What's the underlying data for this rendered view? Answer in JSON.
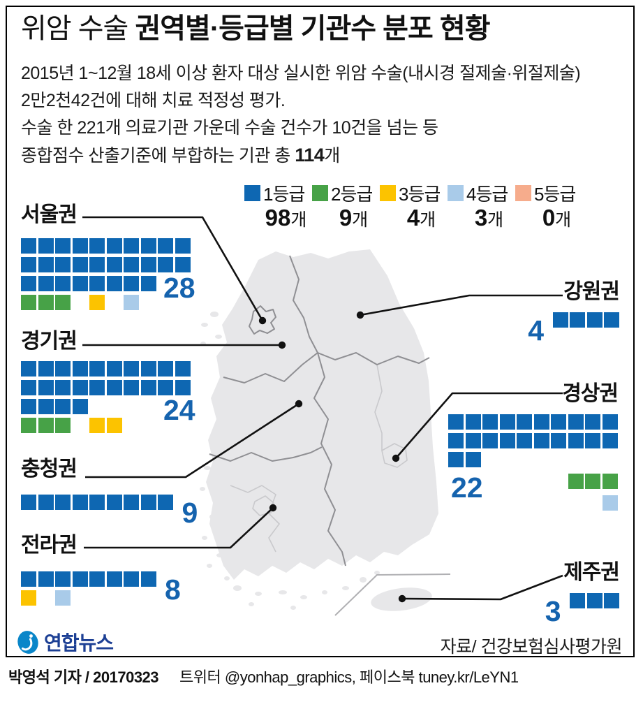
{
  "header": {
    "title_light": "위암 수술 ",
    "title_bold": "권역별·등급별 기관수 분포 현황",
    "subtitle_lines": [
      [
        {
          "t": "2015년 1~12월 18세 이상 환자 대상 실시한 위암 수술(내시경 절제술·위절제술)"
        }
      ],
      [
        {
          "t": "2만2천42건에 대해 치료 적정성 평가."
        }
      ],
      [
        {
          "t": "수술 한 221개 의료기관 가운데 수술 건수가 10건을 넘는 등"
        }
      ],
      [
        {
          "t": "종합점수 산출기준에 부합하는 기관 총 "
        },
        {
          "t": "114",
          "b": true
        },
        {
          "t": "개"
        }
      ]
    ]
  },
  "legend": {
    "items": [
      {
        "key": "B",
        "label": "1등급",
        "count": "98",
        "unit": "개",
        "color": "#0e67b2"
      },
      {
        "key": "G",
        "label": "2등급",
        "count": "9",
        "unit": "개",
        "color": "#47a247"
      },
      {
        "key": "Y",
        "label": "3등급",
        "count": "4",
        "unit": "개",
        "color": "#fcc300"
      },
      {
        "key": "L",
        "label": "4등급",
        "count": "3",
        "unit": "개",
        "color": "#a9cbe9"
      },
      {
        "key": "S",
        "label": "5등급",
        "count": "0",
        "unit": "개",
        "color": "#f6ac8c"
      }
    ]
  },
  "regions": [
    {
      "id": "seoul",
      "label": "서울권",
      "value": "28",
      "num_mode": "abs",
      "row_align": "left",
      "rows": [
        "BBBBBBBBBB",
        "BBBBBBBBBB",
        "BBBBBBBB",
        "GGG_Y_L"
      ]
    },
    {
      "id": "gyeonggi",
      "label": "경기권",
      "value": "24",
      "num_mode": "abs",
      "row_align": "left",
      "rows": [
        "BBBBBBBBBB",
        "BBBBBBBBBB",
        "BBBB",
        "GGG_YY"
      ]
    },
    {
      "id": "chungcheong",
      "label": "충청권",
      "value": "9",
      "num_mode": "after",
      "row_align": "left",
      "rows": [
        "BBBBBBBBB"
      ]
    },
    {
      "id": "jeolla",
      "label": "전라권",
      "value": "8",
      "num_mode": "after",
      "row_align": "left",
      "rows": [
        "BBBBBBBB",
        "Y_L"
      ]
    },
    {
      "id": "gangwon",
      "label": "강원권",
      "value": "4",
      "num_mode": "before",
      "row_align": "right",
      "rows": [
        "BBBB"
      ]
    },
    {
      "id": "gyeongsang",
      "label": "경상권",
      "value": "22",
      "num_mode": "abs",
      "row_align": "left",
      "rows": [
        "BBBBBBBBBB",
        "BBBBBBBBBB",
        "BB",
        "_______GGG",
        "_________L"
      ]
    },
    {
      "id": "jeju",
      "label": "제주권",
      "value": "3",
      "num_mode": "before",
      "row_align": "right",
      "rows": [
        "BBB"
      ]
    }
  ],
  "chart_data": {
    "type": "table",
    "title": "위암 수술 권역별·등급별 기관수 분포 현황",
    "subtitle": "2015년 1~12월 18세 이상 환자 대상 실시한 위암 수술(내시경 절제술·위절제술) 2만2천42건에 대해 치료 적정성 평가. 수술 한 221개 의료기관 가운데 수술 건수가 10건을 넘는 등 종합점수 산출기준에 부합하는 기관 총 114개",
    "categories": [
      "서울권",
      "경기권",
      "강원권",
      "충청권",
      "경상권",
      "전라권",
      "제주권"
    ],
    "series": [
      {
        "name": "1등급",
        "total": 98,
        "values": [
          28,
          24,
          4,
          9,
          22,
          8,
          3
        ]
      },
      {
        "name": "2등급",
        "total": 9,
        "values": [
          3,
          3,
          0,
          0,
          3,
          0,
          0
        ]
      },
      {
        "name": "3등급",
        "total": 4,
        "values": [
          1,
          2,
          0,
          0,
          0,
          1,
          0
        ]
      },
      {
        "name": "4등급",
        "total": 3,
        "values": [
          1,
          0,
          0,
          0,
          1,
          1,
          0
        ]
      },
      {
        "name": "5등급",
        "total": 0,
        "values": [
          0,
          0,
          0,
          0,
          0,
          0,
          0
        ]
      }
    ],
    "displayed_region_numbers": {
      "서울권": 28,
      "경기권": 24,
      "강원권": 4,
      "충청권": 9,
      "경상권": 22,
      "전라권": 8,
      "제주권": 3
    },
    "legend_position": "top-right",
    "unit": "개"
  },
  "footer": {
    "logo_text": "연합뉴스",
    "source": "자료/ 건강보험심사평가원"
  },
  "credit": {
    "author": "박영석 기자 / 20170323",
    "social": "트위터 @yonhap_graphics, 페이스북 tuney.kr/LeYN1"
  }
}
